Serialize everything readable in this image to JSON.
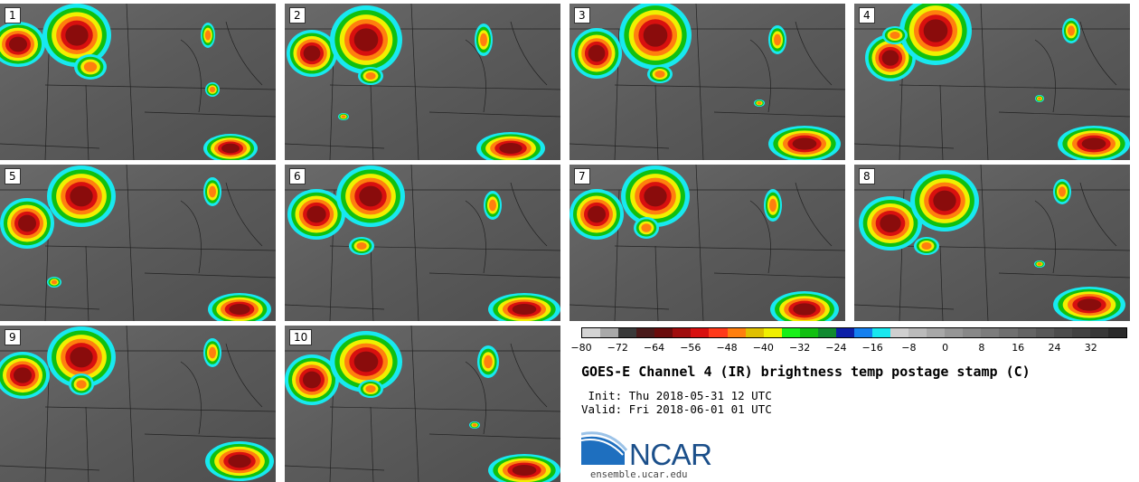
{
  "panels": [
    {
      "label": "1"
    },
    {
      "label": "2"
    },
    {
      "label": "3"
    },
    {
      "label": "4"
    },
    {
      "label": "5"
    },
    {
      "label": "6"
    },
    {
      "label": "7"
    },
    {
      "label": "8"
    },
    {
      "label": "9"
    },
    {
      "label": "10"
    }
  ],
  "colorbar": {
    "colors": [
      "#d4d4d4",
      "#a9a9a9",
      "#3a3a3a",
      "#4a1a1a",
      "#6a0c0c",
      "#a00d0d",
      "#d8100f",
      "#ff3a1a",
      "#ff7f0e",
      "#e0c000",
      "#f0f000",
      "#18f018",
      "#10c010",
      "#108a30",
      "#0c1fa8",
      "#1480f0",
      "#18e8f0",
      "#cfcfcf",
      "#bbbbbb",
      "#a8a8a8",
      "#969696",
      "#888888",
      "#7c7c7c",
      "#707070",
      "#646464",
      "#585858",
      "#4c4c4c",
      "#424242",
      "#383838",
      "#2a2a2a"
    ],
    "ticks": [
      "−80",
      "−72",
      "−64",
      "−56",
      "−48",
      "−40",
      "−32",
      "−24",
      "−16",
      "−8",
      "0",
      "8",
      "16",
      "24",
      "32"
    ]
  },
  "title": "GOES-E Channel 4 (IR) brightness temp postage stamp (C)",
  "init": " Init: Thu 2018-05-31 12 UTC",
  "valid": "Valid: Fri 2018-06-01 01 UTC",
  "logo": {
    "text": "NCAR",
    "accent": "#1e6fbf"
  },
  "site": "ensemble.ucar.edu"
}
